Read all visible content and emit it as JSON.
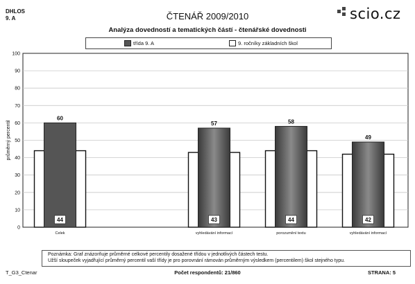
{
  "header": {
    "school_code": "DHLOS",
    "class_name": "9. A",
    "title": "ČTENÁŘ 2009/2010",
    "logo_text": "scio.cz"
  },
  "chart_data": {
    "type": "bar",
    "title": "Analýza dovedností a tematických částí - čtenářské dovednosti",
    "ylabel": "průměrný percentil",
    "xlabel": "",
    "ylim": [
      0,
      100
    ],
    "yticks": [
      0,
      10,
      20,
      30,
      40,
      50,
      60,
      70,
      80,
      90,
      100
    ],
    "grid": true,
    "legend_position": "top",
    "categories": [
      "Celek",
      "vyhledávání informací",
      "porozumění textu",
      "vyhledávání informací"
    ],
    "series": [
      {
        "name": "třída  9. A",
        "values": [
          60,
          57,
          58,
          49
        ],
        "color": "#6e6e6e"
      },
      {
        "name": "9. ročníky základních škol",
        "values": [
          44,
          43,
          44,
          42
        ],
        "color": "#ffffff"
      }
    ]
  },
  "note": {
    "line1": "Poznámka: Graf znázorňuje průměrné celkové percentily dosažené třídou v jednotlivých částech testu.",
    "line2": "Užší sloupeček vyjadřující průměrný percentil vaší třídy je pro porovnání rámován průměrným výsledkem (percentilem) škol stejného typu."
  },
  "footer": {
    "left": "T_G3_Ctenar",
    "respondents": "Počet respondentů: 21/860",
    "page": "STRANA: 5"
  }
}
